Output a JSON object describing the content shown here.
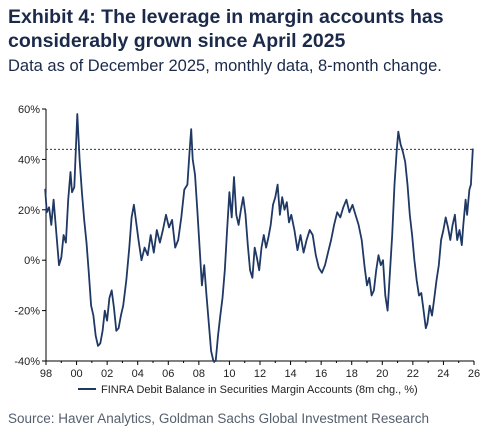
{
  "header": {
    "title": "Exhibit 4: The leverage in margin accounts has considerably grown since April 2025",
    "subtitle": "Data as of December 2025, monthly data, 8-month change."
  },
  "footer": {
    "source": "Source: Haver Analytics, Goldman Sachs Global Investment Research"
  },
  "chart_data": {
    "type": "line",
    "title": "",
    "xlabel": "",
    "ylabel": "",
    "x_ticks": [
      "98",
      "00",
      "02",
      "04",
      "06",
      "08",
      "10",
      "12",
      "14",
      "16",
      "18",
      "20",
      "22",
      "24",
      "26"
    ],
    "y_ticks": [
      "60%",
      "40%",
      "20%",
      "0%",
      "-20%",
      "-40%"
    ],
    "ylim": [
      -40,
      60
    ],
    "xlim": [
      1998,
      2026
    ],
    "grid": false,
    "legend": "bottom",
    "reference_line": {
      "y": 44,
      "style": "dotted"
    },
    "series": [
      {
        "name": "FINRA Debit Balance in Securities Margin Accounts (8m chg., %)",
        "color": "#1f3864",
        "points": [
          [
            1997.95,
            28
          ],
          [
            1998.05,
            19
          ],
          [
            1998.2,
            21
          ],
          [
            1998.35,
            14
          ],
          [
            1998.5,
            24
          ],
          [
            1998.7,
            9
          ],
          [
            1998.85,
            -2
          ],
          [
            1999.0,
            1
          ],
          [
            1999.15,
            10
          ],
          [
            1999.3,
            7
          ],
          [
            1999.45,
            24
          ],
          [
            1999.6,
            35
          ],
          [
            1999.7,
            27
          ],
          [
            1999.85,
            29
          ],
          [
            2000.05,
            58
          ],
          [
            2000.2,
            40
          ],
          [
            2000.35,
            27
          ],
          [
            2000.5,
            16
          ],
          [
            2000.65,
            7
          ],
          [
            2000.8,
            -5
          ],
          [
            2000.95,
            -18
          ],
          [
            2001.1,
            -22
          ],
          [
            2001.25,
            -30
          ],
          [
            2001.4,
            -34
          ],
          [
            2001.55,
            -33
          ],
          [
            2001.7,
            -28
          ],
          [
            2001.85,
            -20
          ],
          [
            2002.0,
            -24
          ],
          [
            2002.15,
            -15
          ],
          [
            2002.3,
            -12
          ],
          [
            2002.45,
            -19
          ],
          [
            2002.6,
            -28
          ],
          [
            2002.75,
            -27
          ],
          [
            2002.9,
            -22
          ],
          [
            2003.05,
            -18
          ],
          [
            2003.25,
            -8
          ],
          [
            2003.45,
            5
          ],
          [
            2003.6,
            17
          ],
          [
            2003.75,
            22
          ],
          [
            2003.9,
            15
          ],
          [
            2004.05,
            8
          ],
          [
            2004.25,
            0
          ],
          [
            2004.45,
            5
          ],
          [
            2004.65,
            2
          ],
          [
            2004.85,
            10
          ],
          [
            2005.05,
            3
          ],
          [
            2005.25,
            12
          ],
          [
            2005.45,
            7
          ],
          [
            2005.65,
            12
          ],
          [
            2005.85,
            18
          ],
          [
            2006.05,
            13
          ],
          [
            2006.25,
            16
          ],
          [
            2006.45,
            5
          ],
          [
            2006.65,
            8
          ],
          [
            2006.85,
            17
          ],
          [
            2007.05,
            28
          ],
          [
            2007.25,
            30
          ],
          [
            2007.4,
            44
          ],
          [
            2007.5,
            52
          ],
          [
            2007.6,
            40
          ],
          [
            2007.75,
            34
          ],
          [
            2007.9,
            20
          ],
          [
            2008.05,
            5
          ],
          [
            2008.2,
            -10
          ],
          [
            2008.35,
            -2
          ],
          [
            2008.5,
            -14
          ],
          [
            2008.65,
            -25
          ],
          [
            2008.8,
            -36
          ],
          [
            2008.95,
            -40
          ],
          [
            2009.1,
            -40
          ],
          [
            2009.25,
            -30
          ],
          [
            2009.4,
            -22
          ],
          [
            2009.55,
            -15
          ],
          [
            2009.7,
            -4
          ],
          [
            2009.85,
            12
          ],
          [
            2010.0,
            27
          ],
          [
            2010.15,
            17
          ],
          [
            2010.3,
            33
          ],
          [
            2010.45,
            18
          ],
          [
            2010.6,
            14
          ],
          [
            2010.75,
            20
          ],
          [
            2010.9,
            25
          ],
          [
            2011.05,
            18
          ],
          [
            2011.2,
            6
          ],
          [
            2011.35,
            -4
          ],
          [
            2011.5,
            -7
          ],
          [
            2011.65,
            5
          ],
          [
            2011.8,
            1
          ],
          [
            2011.95,
            -4
          ],
          [
            2012.1,
            5
          ],
          [
            2012.25,
            10
          ],
          [
            2012.4,
            5
          ],
          [
            2012.55,
            9
          ],
          [
            2012.7,
            14
          ],
          [
            2012.85,
            22
          ],
          [
            2013.0,
            25
          ],
          [
            2013.15,
            30
          ],
          [
            2013.3,
            18
          ],
          [
            2013.45,
            25
          ],
          [
            2013.6,
            20
          ],
          [
            2013.75,
            23
          ],
          [
            2013.9,
            15
          ],
          [
            2014.05,
            18
          ],
          [
            2014.25,
            12
          ],
          [
            2014.45,
            4
          ],
          [
            2014.65,
            10
          ],
          [
            2014.85,
            3
          ],
          [
            2015.05,
            8
          ],
          [
            2015.25,
            12
          ],
          [
            2015.45,
            10
          ],
          [
            2015.65,
            2
          ],
          [
            2015.85,
            -3
          ],
          [
            2016.05,
            -5
          ],
          [
            2016.25,
            -2
          ],
          [
            2016.45,
            3
          ],
          [
            2016.65,
            8
          ],
          [
            2016.85,
            14
          ],
          [
            2017.05,
            19
          ],
          [
            2017.25,
            17
          ],
          [
            2017.45,
            21
          ],
          [
            2017.65,
            24
          ],
          [
            2017.85,
            19
          ],
          [
            2018.05,
            22
          ],
          [
            2018.25,
            18
          ],
          [
            2018.45,
            14
          ],
          [
            2018.65,
            8
          ],
          [
            2018.85,
            -3
          ],
          [
            2019.0,
            -10
          ],
          [
            2019.15,
            -7
          ],
          [
            2019.3,
            -14
          ],
          [
            2019.45,
            -12
          ],
          [
            2019.6,
            -4
          ],
          [
            2019.75,
            2
          ],
          [
            2019.9,
            -2
          ],
          [
            2020.05,
            0
          ],
          [
            2020.2,
            -14
          ],
          [
            2020.35,
            -20
          ],
          [
            2020.5,
            -5
          ],
          [
            2020.65,
            10
          ],
          [
            2020.8,
            30
          ],
          [
            2020.95,
            44
          ],
          [
            2021.05,
            51
          ],
          [
            2021.2,
            46
          ],
          [
            2021.35,
            43
          ],
          [
            2021.5,
            39
          ],
          [
            2021.65,
            30
          ],
          [
            2021.8,
            18
          ],
          [
            2021.95,
            10
          ],
          [
            2022.1,
            0
          ],
          [
            2022.25,
            -8
          ],
          [
            2022.4,
            -14
          ],
          [
            2022.55,
            -13
          ],
          [
            2022.7,
            -20
          ],
          [
            2022.85,
            -27
          ],
          [
            2022.95,
            -25
          ],
          [
            2023.1,
            -18
          ],
          [
            2023.25,
            -22
          ],
          [
            2023.4,
            -15
          ],
          [
            2023.55,
            -8
          ],
          [
            2023.7,
            -2
          ],
          [
            2023.85,
            8
          ],
          [
            2024.0,
            12
          ],
          [
            2024.15,
            17
          ],
          [
            2024.3,
            13
          ],
          [
            2024.45,
            8
          ],
          [
            2024.6,
            14
          ],
          [
            2024.75,
            18
          ],
          [
            2024.9,
            8
          ],
          [
            2025.05,
            12
          ],
          [
            2025.2,
            6
          ],
          [
            2025.3,
            14
          ],
          [
            2025.45,
            24
          ],
          [
            2025.55,
            18
          ],
          [
            2025.7,
            28
          ],
          [
            2025.8,
            30
          ],
          [
            2025.92,
            44
          ]
        ]
      }
    ]
  }
}
